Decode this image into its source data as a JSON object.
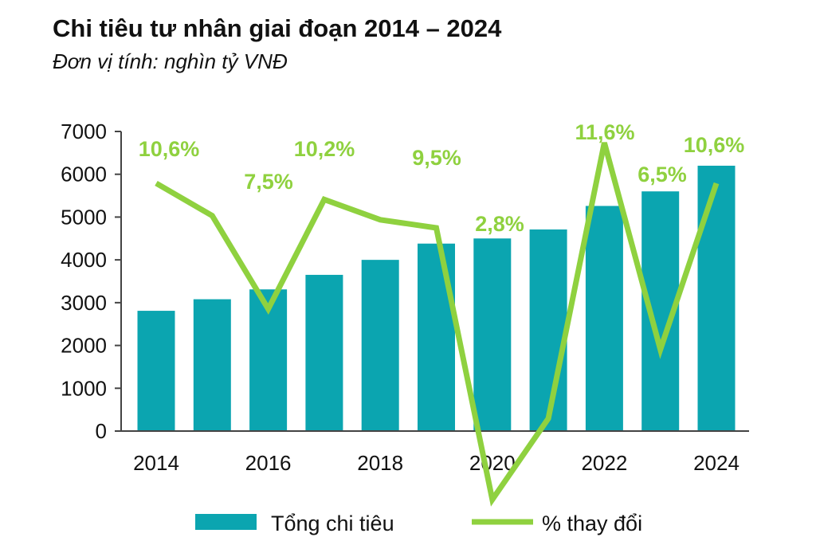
{
  "title": "Chi tiêu tư nhân giai đoạn 2014 – 2024",
  "subtitle": "Đơn vị tính: nghìn tỷ VNĐ",
  "chart_data": {
    "type": "bar",
    "x": [
      2014,
      2015,
      2016,
      2017,
      2018,
      2019,
      2020,
      2021,
      2022,
      2023,
      2024
    ],
    "x_tick_labels": [
      "2014",
      "2016",
      "2018",
      "2020",
      "2022",
      "2024"
    ],
    "ylim": [
      0,
      7000
    ],
    "y_ticks": [
      "0",
      "1000",
      "2000",
      "3000",
      "4000",
      "5000",
      "6000",
      "7000"
    ],
    "series": [
      {
        "name": "Tổng chi tiêu",
        "type": "bar",
        "color": "#0ba5b0",
        "values": [
          2810,
          3080,
          3310,
          3650,
          4000,
          4380,
          4500,
          4710,
          5260,
          5600,
          6200
        ]
      },
      {
        "name": "% thay đổi",
        "type": "line",
        "color": "#8fd13f",
        "values": [
          10.6,
          9.8,
          7.5,
          10.2,
          9.7,
          9.5,
          2.8,
          4.8,
          11.6,
          6.5,
          10.6
        ]
      }
    ],
    "data_labels": [
      "10,6%",
      "7,5%",
      "10,2%",
      "9,5%",
      "2,8%",
      "11,6%",
      "6,5%",
      "10,6%"
    ],
    "legend": {
      "placement": "bottom"
    }
  }
}
